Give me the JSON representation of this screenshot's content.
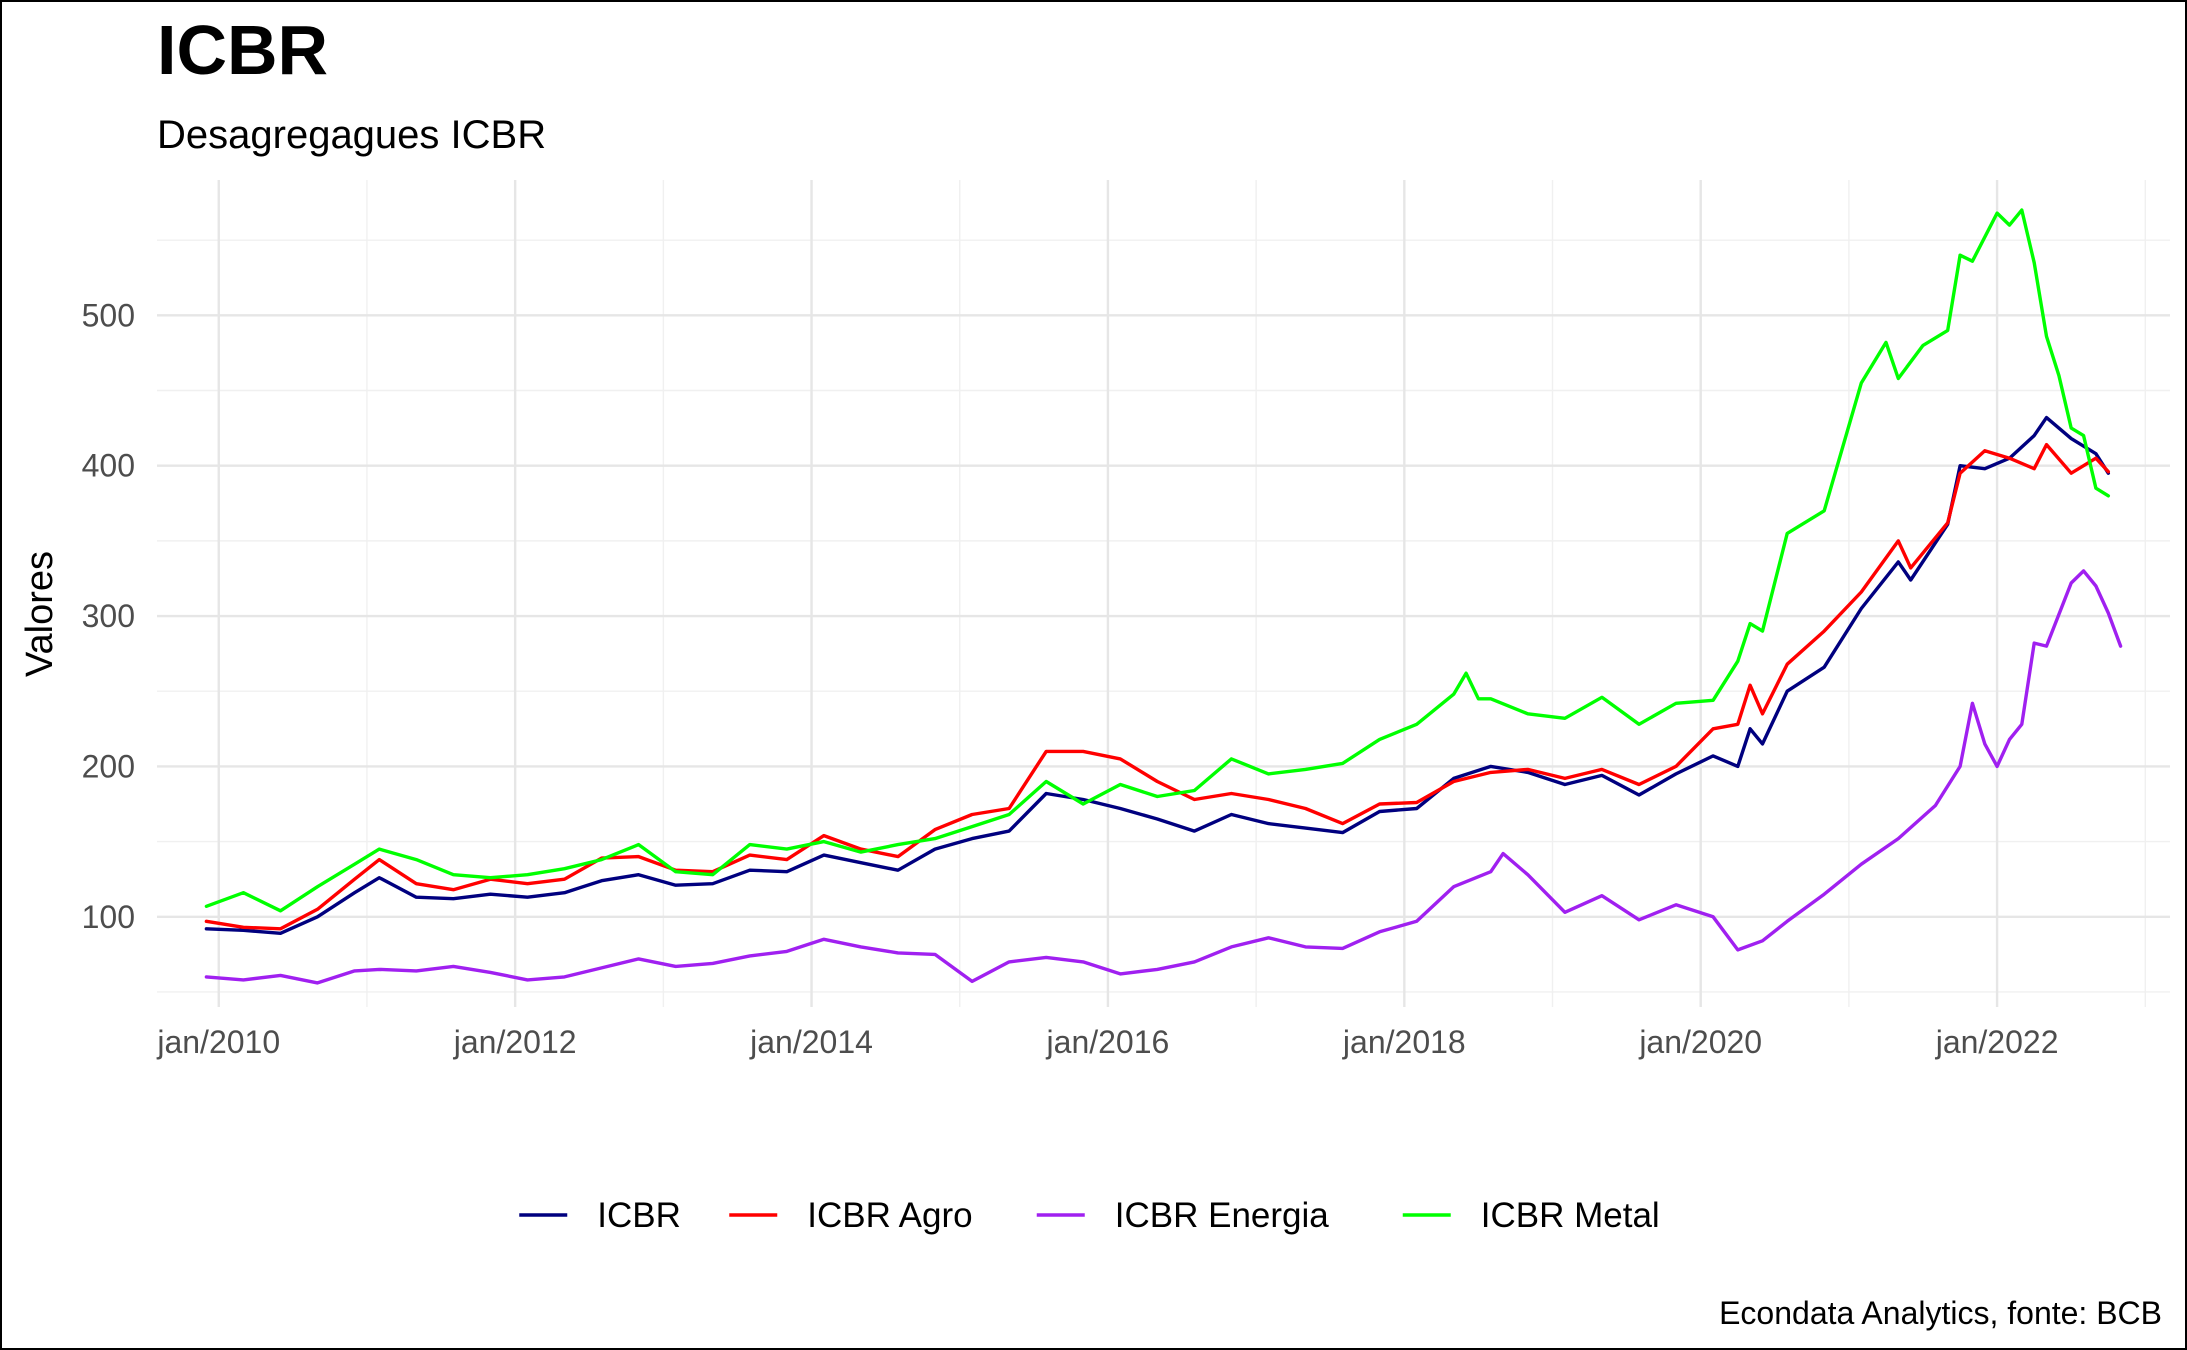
{
  "chart_data": {
    "type": "line",
    "title": "ICBR",
    "subtitle": "Desagregagues ICBR",
    "xlabel": "",
    "ylabel": "Valores",
    "caption": "Econdata Analytics, fonte: BCB",
    "grid": true,
    "legend_position": "bottom",
    "ylim": [
      40,
      590
    ],
    "xlim": [
      "2009-08",
      "2023-03"
    ],
    "y_ticks": [
      100,
      200,
      300,
      400,
      500
    ],
    "x_ticks": [
      {
        "date": "2010-01",
        "label": "jan/2010"
      },
      {
        "date": "2012-01",
        "label": "jan/2012"
      },
      {
        "date": "2014-01",
        "label": "jan/2014"
      },
      {
        "date": "2016-01",
        "label": "jan/2016"
      },
      {
        "date": "2018-01",
        "label": "jan/2018"
      },
      {
        "date": "2020-01",
        "label": "jan/2020"
      },
      {
        "date": "2022-01",
        "label": "jan/2022"
      }
    ],
    "series": [
      {
        "name": "ICBR",
        "color": "#00007f",
        "points": [
          [
            "2009-12",
            92
          ],
          [
            "2010-03",
            91
          ],
          [
            "2010-06",
            89
          ],
          [
            "2010-09",
            100
          ],
          [
            "2010-12",
            116
          ],
          [
            "2011-02",
            126
          ],
          [
            "2011-05",
            113
          ],
          [
            "2011-08",
            112
          ],
          [
            "2011-11",
            115
          ],
          [
            "2012-02",
            113
          ],
          [
            "2012-05",
            116
          ],
          [
            "2012-08",
            124
          ],
          [
            "2012-11",
            128
          ],
          [
            "2013-02",
            121
          ],
          [
            "2013-05",
            122
          ],
          [
            "2013-08",
            131
          ],
          [
            "2013-11",
            130
          ],
          [
            "2014-02",
            141
          ],
          [
            "2014-05",
            136
          ],
          [
            "2014-08",
            131
          ],
          [
            "2014-11",
            145
          ],
          [
            "2015-02",
            152
          ],
          [
            "2015-05",
            157
          ],
          [
            "2015-08",
            182
          ],
          [
            "2015-11",
            178
          ],
          [
            "2016-02",
            172
          ],
          [
            "2016-05",
            165
          ],
          [
            "2016-08",
            157
          ],
          [
            "2016-11",
            168
          ],
          [
            "2017-02",
            162
          ],
          [
            "2017-05",
            159
          ],
          [
            "2017-08",
            156
          ],
          [
            "2017-11",
            170
          ],
          [
            "2018-02",
            172
          ],
          [
            "2018-05",
            192
          ],
          [
            "2018-08",
            200
          ],
          [
            "2018-11",
            196
          ],
          [
            "2019-02",
            188
          ],
          [
            "2019-05",
            194
          ],
          [
            "2019-08",
            181
          ],
          [
            "2019-11",
            195
          ],
          [
            "2020-02",
            207
          ],
          [
            "2020-04",
            200
          ],
          [
            "2020-05",
            225
          ],
          [
            "2020-06",
            215
          ],
          [
            "2020-08",
            250
          ],
          [
            "2020-11",
            266
          ],
          [
            "2021-02",
            305
          ],
          [
            "2021-05",
            336
          ],
          [
            "2021-06",
            324
          ],
          [
            "2021-09",
            361
          ],
          [
            "2021-10",
            400
          ],
          [
            "2021-12",
            398
          ],
          [
            "2022-02",
            405
          ],
          [
            "2022-04",
            420
          ],
          [
            "2022-05",
            432
          ],
          [
            "2022-07",
            418
          ],
          [
            "2022-09",
            408
          ],
          [
            "2022-10",
            395
          ]
        ]
      },
      {
        "name": "ICBR Agro",
        "color": "#ff0000",
        "points": [
          [
            "2009-12",
            97
          ],
          [
            "2010-03",
            93
          ],
          [
            "2010-06",
            92
          ],
          [
            "2010-09",
            105
          ],
          [
            "2010-12",
            125
          ],
          [
            "2011-02",
            138
          ],
          [
            "2011-05",
            122
          ],
          [
            "2011-08",
            118
          ],
          [
            "2011-11",
            125
          ],
          [
            "2012-02",
            122
          ],
          [
            "2012-05",
            125
          ],
          [
            "2012-08",
            139
          ],
          [
            "2012-11",
            140
          ],
          [
            "2013-02",
            131
          ],
          [
            "2013-05",
            130
          ],
          [
            "2013-08",
            141
          ],
          [
            "2013-11",
            138
          ],
          [
            "2014-02",
            154
          ],
          [
            "2014-05",
            145
          ],
          [
            "2014-08",
            140
          ],
          [
            "2014-11",
            158
          ],
          [
            "2015-02",
            168
          ],
          [
            "2015-05",
            172
          ],
          [
            "2015-08",
            210
          ],
          [
            "2015-11",
            210
          ],
          [
            "2016-02",
            205
          ],
          [
            "2016-05",
            190
          ],
          [
            "2016-08",
            178
          ],
          [
            "2016-11",
            182
          ],
          [
            "2017-02",
            178
          ],
          [
            "2017-05",
            172
          ],
          [
            "2017-08",
            162
          ],
          [
            "2017-11",
            175
          ],
          [
            "2018-02",
            176
          ],
          [
            "2018-05",
            190
          ],
          [
            "2018-08",
            196
          ],
          [
            "2018-11",
            198
          ],
          [
            "2019-02",
            192
          ],
          [
            "2019-05",
            198
          ],
          [
            "2019-08",
            188
          ],
          [
            "2019-11",
            200
          ],
          [
            "2020-02",
            225
          ],
          [
            "2020-04",
            228
          ],
          [
            "2020-05",
            254
          ],
          [
            "2020-06",
            235
          ],
          [
            "2020-08",
            268
          ],
          [
            "2020-11",
            290
          ],
          [
            "2021-02",
            316
          ],
          [
            "2021-05",
            350
          ],
          [
            "2021-06",
            332
          ],
          [
            "2021-09",
            362
          ],
          [
            "2021-10",
            395
          ],
          [
            "2021-12",
            410
          ],
          [
            "2022-02",
            405
          ],
          [
            "2022-04",
            398
          ],
          [
            "2022-05",
            414
          ],
          [
            "2022-07",
            395
          ],
          [
            "2022-09",
            405
          ],
          [
            "2022-10",
            396
          ]
        ]
      },
      {
        "name": "ICBR Energia",
        "color": "#a020f0",
        "points": [
          [
            "2009-12",
            60
          ],
          [
            "2010-03",
            58
          ],
          [
            "2010-06",
            61
          ],
          [
            "2010-09",
            56
          ],
          [
            "2010-12",
            64
          ],
          [
            "2011-02",
            65
          ],
          [
            "2011-05",
            64
          ],
          [
            "2011-08",
            67
          ],
          [
            "2011-11",
            63
          ],
          [
            "2012-02",
            58
          ],
          [
            "2012-05",
            60
          ],
          [
            "2012-08",
            66
          ],
          [
            "2012-11",
            72
          ],
          [
            "2013-02",
            67
          ],
          [
            "2013-05",
            69
          ],
          [
            "2013-08",
            74
          ],
          [
            "2013-11",
            77
          ],
          [
            "2014-02",
            85
          ],
          [
            "2014-05",
            80
          ],
          [
            "2014-08",
            76
          ],
          [
            "2014-11",
            75
          ],
          [
            "2015-02",
            57
          ],
          [
            "2015-05",
            70
          ],
          [
            "2015-08",
            73
          ],
          [
            "2015-11",
            70
          ],
          [
            "2016-02",
            62
          ],
          [
            "2016-05",
            65
          ],
          [
            "2016-08",
            70
          ],
          [
            "2016-11",
            80
          ],
          [
            "2017-02",
            86
          ],
          [
            "2017-05",
            80
          ],
          [
            "2017-08",
            79
          ],
          [
            "2017-11",
            90
          ],
          [
            "2018-02",
            97
          ],
          [
            "2018-05",
            120
          ],
          [
            "2018-08",
            130
          ],
          [
            "2018-09",
            142
          ],
          [
            "2018-11",
            128
          ],
          [
            "2019-02",
            103
          ],
          [
            "2019-05",
            114
          ],
          [
            "2019-08",
            98
          ],
          [
            "2019-11",
            108
          ],
          [
            "2020-02",
            100
          ],
          [
            "2020-04",
            78
          ],
          [
            "2020-06",
            84
          ],
          [
            "2020-08",
            97
          ],
          [
            "2020-11",
            115
          ],
          [
            "2021-02",
            135
          ],
          [
            "2021-05",
            152
          ],
          [
            "2021-08",
            174
          ],
          [
            "2021-10",
            200
          ],
          [
            "2021-11",
            242
          ],
          [
            "2021-12",
            215
          ],
          [
            "2022-01",
            200
          ],
          [
            "2022-02",
            218
          ],
          [
            "2022-03",
            228
          ],
          [
            "2022-04",
            282
          ],
          [
            "2022-05",
            280
          ],
          [
            "2022-07",
            322
          ],
          [
            "2022-08",
            330
          ],
          [
            "2022-09",
            320
          ],
          [
            "2022-10",
            302
          ],
          [
            "2022-11",
            280
          ]
        ]
      },
      {
        "name": "ICBR Metal",
        "color": "#00ff00",
        "points": [
          [
            "2009-12",
            107
          ],
          [
            "2010-03",
            116
          ],
          [
            "2010-06",
            104
          ],
          [
            "2010-09",
            120
          ],
          [
            "2010-12",
            135
          ],
          [
            "2011-02",
            145
          ],
          [
            "2011-05",
            138
          ],
          [
            "2011-08",
            128
          ],
          [
            "2011-11",
            126
          ],
          [
            "2012-02",
            128
          ],
          [
            "2012-05",
            132
          ],
          [
            "2012-08",
            138
          ],
          [
            "2012-11",
            148
          ],
          [
            "2013-02",
            130
          ],
          [
            "2013-05",
            128
          ],
          [
            "2013-08",
            148
          ],
          [
            "2013-11",
            145
          ],
          [
            "2014-02",
            150
          ],
          [
            "2014-05",
            143
          ],
          [
            "2014-08",
            148
          ],
          [
            "2014-11",
            152
          ],
          [
            "2015-02",
            160
          ],
          [
            "2015-05",
            168
          ],
          [
            "2015-08",
            190
          ],
          [
            "2015-11",
            175
          ],
          [
            "2016-02",
            188
          ],
          [
            "2016-05",
            180
          ],
          [
            "2016-08",
            184
          ],
          [
            "2016-11",
            205
          ],
          [
            "2017-02",
            195
          ],
          [
            "2017-05",
            198
          ],
          [
            "2017-08",
            202
          ],
          [
            "2017-11",
            218
          ],
          [
            "2018-02",
            228
          ],
          [
            "2018-05",
            248
          ],
          [
            "2018-06",
            262
          ],
          [
            "2018-07",
            245
          ],
          [
            "2018-08",
            245
          ],
          [
            "2018-11",
            235
          ],
          [
            "2019-02",
            232
          ],
          [
            "2019-05",
            246
          ],
          [
            "2019-08",
            228
          ],
          [
            "2019-11",
            242
          ],
          [
            "2020-02",
            244
          ],
          [
            "2020-04",
            270
          ],
          [
            "2020-05",
            295
          ],
          [
            "2020-06",
            290
          ],
          [
            "2020-08",
            355
          ],
          [
            "2020-11",
            370
          ],
          [
            "2021-02",
            455
          ],
          [
            "2021-04",
            482
          ],
          [
            "2021-05",
            458
          ],
          [
            "2021-07",
            480
          ],
          [
            "2021-09",
            490
          ],
          [
            "2021-10",
            540
          ],
          [
            "2021-11",
            536
          ],
          [
            "2022-01",
            568
          ],
          [
            "2022-02",
            560
          ],
          [
            "2022-03",
            570
          ],
          [
            "2022-04",
            535
          ],
          [
            "2022-05",
            486
          ],
          [
            "2022-06",
            460
          ],
          [
            "2022-07",
            425
          ],
          [
            "2022-08",
            420
          ],
          [
            "2022-09",
            385
          ],
          [
            "2022-10",
            380
          ]
        ]
      }
    ]
  }
}
